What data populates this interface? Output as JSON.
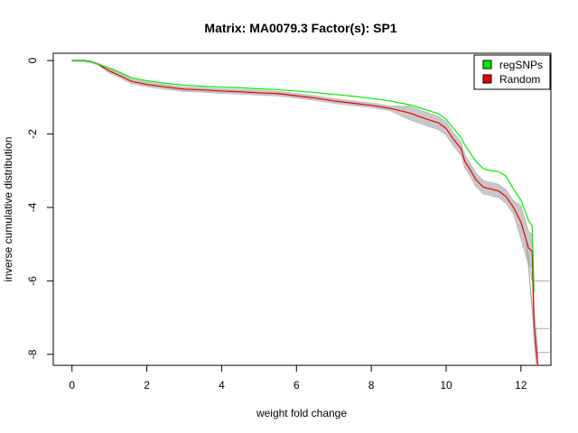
{
  "chart_data": {
    "type": "line",
    "title": "Matrix: MA0079.3 Factor(s): SP1",
    "xlabel": "weight fold change",
    "ylabel": "inverse cumulative distribution",
    "xlim": [
      -0.5,
      12.8
    ],
    "ylim": [
      -8.3,
      0.2
    ],
    "xticks": [
      0,
      2,
      4,
      6,
      8,
      10,
      12
    ],
    "yticks": [
      0,
      -2,
      -4,
      -6,
      -8
    ],
    "grid": false,
    "legend_position": "top-right",
    "legend": [
      {
        "label": "regSNPs",
        "color": "#00ee00"
      },
      {
        "label": "Random",
        "color": "#ee0000"
      }
    ],
    "series": [
      {
        "name": "regSNPs",
        "color": "#00ee00",
        "x": [
          0,
          0.3,
          0.5,
          0.7,
          1.0,
          1.3,
          1.6,
          2.0,
          2.5,
          3.0,
          3.5,
          4.0,
          4.5,
          5.0,
          5.5,
          6.0,
          6.5,
          7.0,
          7.5,
          8.0,
          8.5,
          9.0,
          9.5,
          9.8,
          10.0,
          10.2,
          10.4,
          10.5,
          10.6,
          10.8,
          11.0,
          11.2,
          11.4,
          11.6,
          11.8,
          12.0,
          12.2,
          12.3,
          12.35
        ],
        "y": [
          0,
          0,
          -0.03,
          -0.1,
          -0.2,
          -0.33,
          -0.47,
          -0.55,
          -0.62,
          -0.67,
          -0.7,
          -0.72,
          -0.74,
          -0.77,
          -0.79,
          -0.83,
          -0.87,
          -0.92,
          -0.97,
          -1.03,
          -1.1,
          -1.2,
          -1.35,
          -1.45,
          -1.6,
          -1.85,
          -2.1,
          -2.3,
          -2.45,
          -2.75,
          -2.95,
          -3.0,
          -3.02,
          -3.15,
          -3.5,
          -3.8,
          -4.35,
          -4.5,
          -6.3
        ]
      },
      {
        "name": "Random",
        "color": "#ee0000",
        "x": [
          0,
          0.3,
          0.5,
          0.7,
          1.0,
          1.3,
          1.6,
          2.0,
          2.5,
          3.0,
          3.5,
          4.0,
          4.5,
          5.0,
          5.5,
          6.0,
          6.5,
          7.0,
          7.5,
          8.0,
          8.5,
          9.0,
          9.5,
          9.8,
          10.0,
          10.2,
          10.4,
          10.5,
          10.6,
          10.8,
          11.0,
          11.2,
          11.4,
          11.6,
          11.8,
          12.0,
          12.2,
          12.3,
          12.35,
          12.45
        ],
        "y": [
          0,
          0,
          -0.03,
          -0.1,
          -0.28,
          -0.42,
          -0.57,
          -0.65,
          -0.72,
          -0.78,
          -0.8,
          -0.83,
          -0.85,
          -0.88,
          -0.9,
          -0.96,
          -1.02,
          -1.1,
          -1.16,
          -1.22,
          -1.3,
          -1.42,
          -1.6,
          -1.7,
          -1.85,
          -2.15,
          -2.4,
          -2.75,
          -2.9,
          -3.25,
          -3.45,
          -3.5,
          -3.55,
          -3.7,
          -4.0,
          -4.4,
          -5.1,
          -5.2,
          -7.2,
          -8.3
        ]
      }
    ]
  }
}
